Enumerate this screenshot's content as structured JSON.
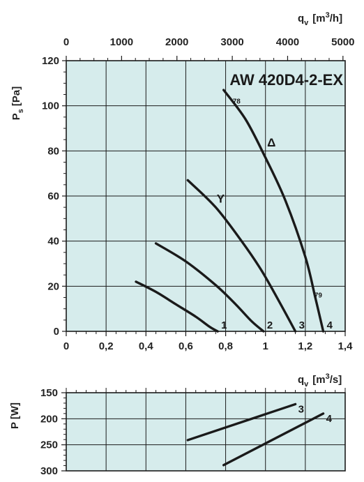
{
  "chart_data": [
    {
      "type": "line",
      "title": "AW 420D4-2-EX",
      "xlabel": "",
      "ylabel": "Ps [Pa]",
      "ylabel_main": "P",
      "ylabel_sub": "s",
      "ylabel_unit": "[Pa]",
      "xlim": [
        0,
        1.4
      ],
      "ylim": [
        0,
        120
      ],
      "x_ticks": [
        "0",
        "0,2",
        "0,4",
        "0,6",
        "0,8",
        "1",
        "1,2",
        "1,4"
      ],
      "y_ticks": [
        "0",
        "20",
        "40",
        "60",
        "80",
        "100",
        "120"
      ],
      "secondary_x": {
        "label": "qv [m3/h]",
        "label_main": "q",
        "label_sub": "v",
        "label_unit_pre": "[m",
        "label_unit_sup": "3",
        "label_unit_post": "/h]",
        "ticks": [
          "0",
          "1000",
          "2000",
          "3000",
          "4000",
          "5000"
        ],
        "lim": [
          0,
          5040
        ]
      },
      "grid": true,
      "series": [
        {
          "name": "1",
          "x": [
            0.35,
            0.45,
            0.55,
            0.65,
            0.72,
            0.76
          ],
          "y": [
            22,
            17.5,
            12,
            6.5,
            2,
            0
          ]
        },
        {
          "name": "2",
          "x": [
            0.45,
            0.6,
            0.75,
            0.85,
            0.93,
            0.99
          ],
          "y": [
            39,
            31,
            20.5,
            12,
            4.5,
            0
          ]
        },
        {
          "name": "3",
          "x": [
            0.61,
            0.75,
            0.88,
            0.98,
            1.07,
            1.15
          ],
          "y": [
            67,
            55,
            40,
            27,
            13,
            0
          ]
        },
        {
          "name": "4",
          "x": [
            0.79,
            0.9,
            1.0,
            1.1,
            1.2,
            1.25,
            1.29
          ],
          "y": [
            107,
            94,
            77,
            58,
            33,
            15,
            0
          ]
        }
      ],
      "annotations": [
        {
          "text": "78",
          "x": 0.855,
          "y": 101
        },
        {
          "text": "79",
          "x": 1.265,
          "y": 15
        },
        {
          "text": "Δ",
          "x": 1.03,
          "y": 82
        },
        {
          "text": "Y",
          "x": 0.775,
          "y": 57
        }
      ]
    },
    {
      "type": "line",
      "title": "",
      "xlabel": "qv [m3/s]",
      "xlabel_main": "q",
      "xlabel_sub": "v",
      "xlabel_unit_pre": "[m",
      "xlabel_unit_sup": "3",
      "xlabel_unit_post": "/s]",
      "ylabel": "P [W]",
      "xlim": [
        0,
        1.4
      ],
      "ylim": [
        300,
        150
      ],
      "y_ticks": [
        "150",
        "200",
        "250",
        "300"
      ],
      "grid": true,
      "series": [
        {
          "name": "3",
          "x": [
            0.61,
            1.15
          ],
          "y": [
            241,
            172
          ]
        },
        {
          "name": "4",
          "x": [
            0.79,
            1.29
          ],
          "y": [
            289,
            190
          ]
        }
      ]
    }
  ]
}
